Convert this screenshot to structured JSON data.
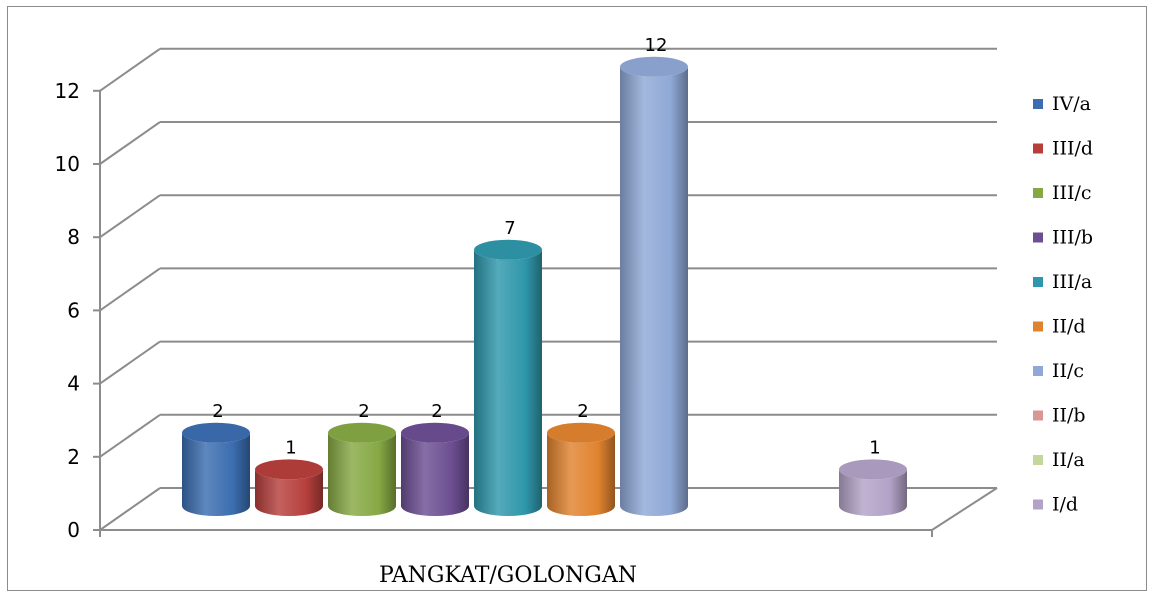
{
  "chart_data": {
    "type": "bar",
    "style": "3d-cylinder",
    "categories": [
      "PANGKAT/GOLONGAN"
    ],
    "xlabel": "PANGKAT/GOLONGAN",
    "ylim": [
      0,
      12
    ],
    "yticks": [
      0,
      2,
      4,
      6,
      8,
      10,
      12
    ],
    "grid": true,
    "legend_position": "right",
    "series": [
      {
        "name": "IV/a",
        "value": 2,
        "color": "#3b6db0"
      },
      {
        "name": "III/d",
        "value": 1,
        "color": "#b63f3c"
      },
      {
        "name": "III/c",
        "value": 2,
        "color": "#86a844"
      },
      {
        "name": "III/b",
        "value": 2,
        "color": "#6c4e92"
      },
      {
        "name": "III/a",
        "value": 7,
        "color": "#2f97ab"
      },
      {
        "name": "II/d",
        "value": 2,
        "color": "#e0832f"
      },
      {
        "name": "II/c",
        "value": 12,
        "color": "#8fa8d6"
      },
      {
        "name": "II/b",
        "value": 0,
        "color": "#d99694"
      },
      {
        "name": "II/a",
        "value": 0,
        "color": "#c3d69b"
      },
      {
        "name": "I/d",
        "value": 1,
        "color": "#b2a2c7"
      }
    ]
  }
}
